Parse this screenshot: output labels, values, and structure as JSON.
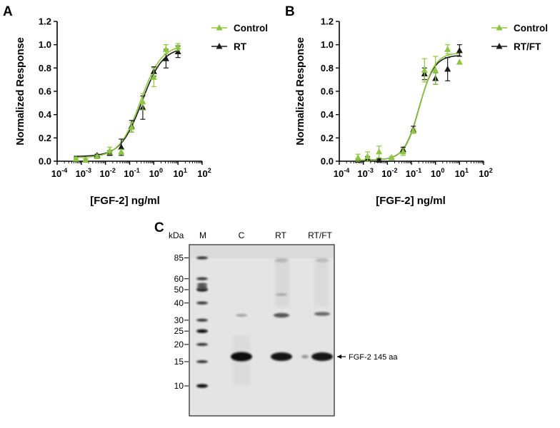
{
  "colors": {
    "control": "#8dc63f",
    "treated": "#1a1a1a",
    "axis": "#000000",
    "gel_bg": "#e3e3e3"
  },
  "chart_data": [
    {
      "panel": "A",
      "type": "scatter",
      "ylabel": "Normalized Response",
      "xlabel": "[FGF-2] ng/ml",
      "xscale": "log",
      "xlim": [
        0.0001,
        100
      ],
      "ylim": [
        0,
        1.2
      ],
      "x_ticks": [
        {
          "v": 0.0001,
          "b": "10",
          "e": "-4"
        },
        {
          "v": 0.001,
          "b": "10",
          "e": "-3"
        },
        {
          "v": 0.01,
          "b": "10",
          "e": "-2"
        },
        {
          "v": 0.1,
          "b": "10",
          "e": "-1"
        },
        {
          "v": 1,
          "b": "10",
          "e": "0"
        },
        {
          "v": 10,
          "b": "10",
          "e": "1"
        },
        {
          "v": 100,
          "b": "10",
          "e": "2"
        }
      ],
      "y_ticks": [
        "0.0",
        "0.2",
        "0.4",
        "0.6",
        "0.8",
        "1.0",
        "1.2"
      ],
      "legend_position": "top-right",
      "series": [
        {
          "name": "Control",
          "marker": "triangle",
          "color_key": "control",
          "x": [
            0.0006,
            0.0015,
            0.0045,
            0.015,
            0.045,
            0.12,
            0.35,
            1.0,
            3.2,
            10
          ],
          "y": [
            0.02,
            0.01,
            0.04,
            0.09,
            0.08,
            0.29,
            0.51,
            0.72,
            0.96,
            0.98
          ],
          "err": [
            0.01,
            0.01,
            0.01,
            0.03,
            0.02,
            0.04,
            0.07,
            0.08,
            0.04,
            0.03
          ],
          "fit": {
            "bottom": 0.03,
            "top": 1.0,
            "ec50": 0.28,
            "hill": 1.0
          }
        },
        {
          "name": "RT",
          "marker": "triangle",
          "color_key": "treated",
          "x": [
            0.0006,
            0.0015,
            0.0045,
            0.015,
            0.045,
            0.12,
            0.35,
            1.0,
            3.2,
            10
          ],
          "y": [
            0.02,
            0.01,
            0.05,
            0.07,
            0.12,
            0.3,
            0.46,
            0.77,
            0.88,
            0.94
          ],
          "err": [
            0.01,
            0.01,
            0.01,
            0.02,
            0.07,
            0.05,
            0.1,
            0.04,
            0.08,
            0.05
          ],
          "fit": {
            "bottom": 0.04,
            "top": 0.98,
            "ec50": 0.32,
            "hill": 1.0
          }
        }
      ]
    },
    {
      "panel": "B",
      "type": "scatter",
      "ylabel": "Normalized Response",
      "xlabel": "[FGF-2] ng/ml",
      "xscale": "log",
      "xlim": [
        0.0001,
        100
      ],
      "ylim": [
        0,
        1.2
      ],
      "x_ticks": [
        {
          "v": 0.0001,
          "b": "10",
          "e": "-4"
        },
        {
          "v": 0.001,
          "b": "10",
          "e": "-3"
        },
        {
          "v": 0.01,
          "b": "10",
          "e": "-2"
        },
        {
          "v": 0.1,
          "b": "10",
          "e": "-1"
        },
        {
          "v": 1,
          "b": "10",
          "e": "0"
        },
        {
          "v": 10,
          "b": "10",
          "e": "1"
        },
        {
          "v": 100,
          "b": "10",
          "e": "2"
        }
      ],
      "y_ticks": [
        "0.0",
        "0.2",
        "0.4",
        "0.6",
        "0.8",
        "1.0",
        "1.2"
      ],
      "legend_position": "top-right",
      "series": [
        {
          "name": "Control",
          "marker": "triangle",
          "color_key": "control",
          "x": [
            0.0006,
            0.0015,
            0.0045,
            0.015,
            0.045,
            0.12,
            0.35,
            1.0,
            3.2,
            10
          ],
          "y": [
            0.03,
            0.04,
            0.08,
            0.03,
            0.08,
            0.26,
            0.78,
            0.78,
            0.96,
            0.85
          ],
          "err": [
            0.03,
            0.04,
            0.05,
            0.01,
            0.03,
            0.02,
            0.1,
            0.12,
            0.04,
            0.0
          ],
          "fit": {
            "bottom": 0.01,
            "top": 0.93,
            "ec50": 0.22,
            "hill": 1.4
          }
        },
        {
          "name": "RT/FT",
          "marker": "triangle",
          "color_key": "treated",
          "x": [
            0.0006,
            0.0015,
            0.0045,
            0.015,
            0.045,
            0.12,
            0.35,
            1.0,
            3.2,
            10
          ],
          "y": [
            0.01,
            0.02,
            0.01,
            0.03,
            0.1,
            0.27,
            0.75,
            0.71,
            0.79,
            0.95
          ],
          "err": [
            0.01,
            0.02,
            0.01,
            0.01,
            0.02,
            0.03,
            0.05,
            0.05,
            0.1,
            0.05
          ],
          "fit": {
            "bottom": 0.01,
            "top": 0.91,
            "ec50": 0.21,
            "hill": 1.4
          }
        }
      ]
    }
  ],
  "panels": {
    "a": "A",
    "b": "B",
    "c": "C"
  },
  "gel": {
    "kda_label": "kDa",
    "lanes": [
      "M",
      "C",
      "RT",
      "RT/FT"
    ],
    "ladder": [
      {
        "label": "85",
        "kda": 85
      },
      {
        "label": "60",
        "kda": 60
      },
      {
        "label": "50",
        "kda": 50
      },
      {
        "label": "40",
        "kda": 40
      },
      {
        "label": "30",
        "kda": 30
      },
      {
        "label": "25",
        "kda": 25
      },
      {
        "label": "20",
        "kda": 20
      },
      {
        "label": "15",
        "kda": 15
      },
      {
        "label": "10",
        "kda": 10
      }
    ],
    "annotation": "FGF-2 145 aa"
  }
}
